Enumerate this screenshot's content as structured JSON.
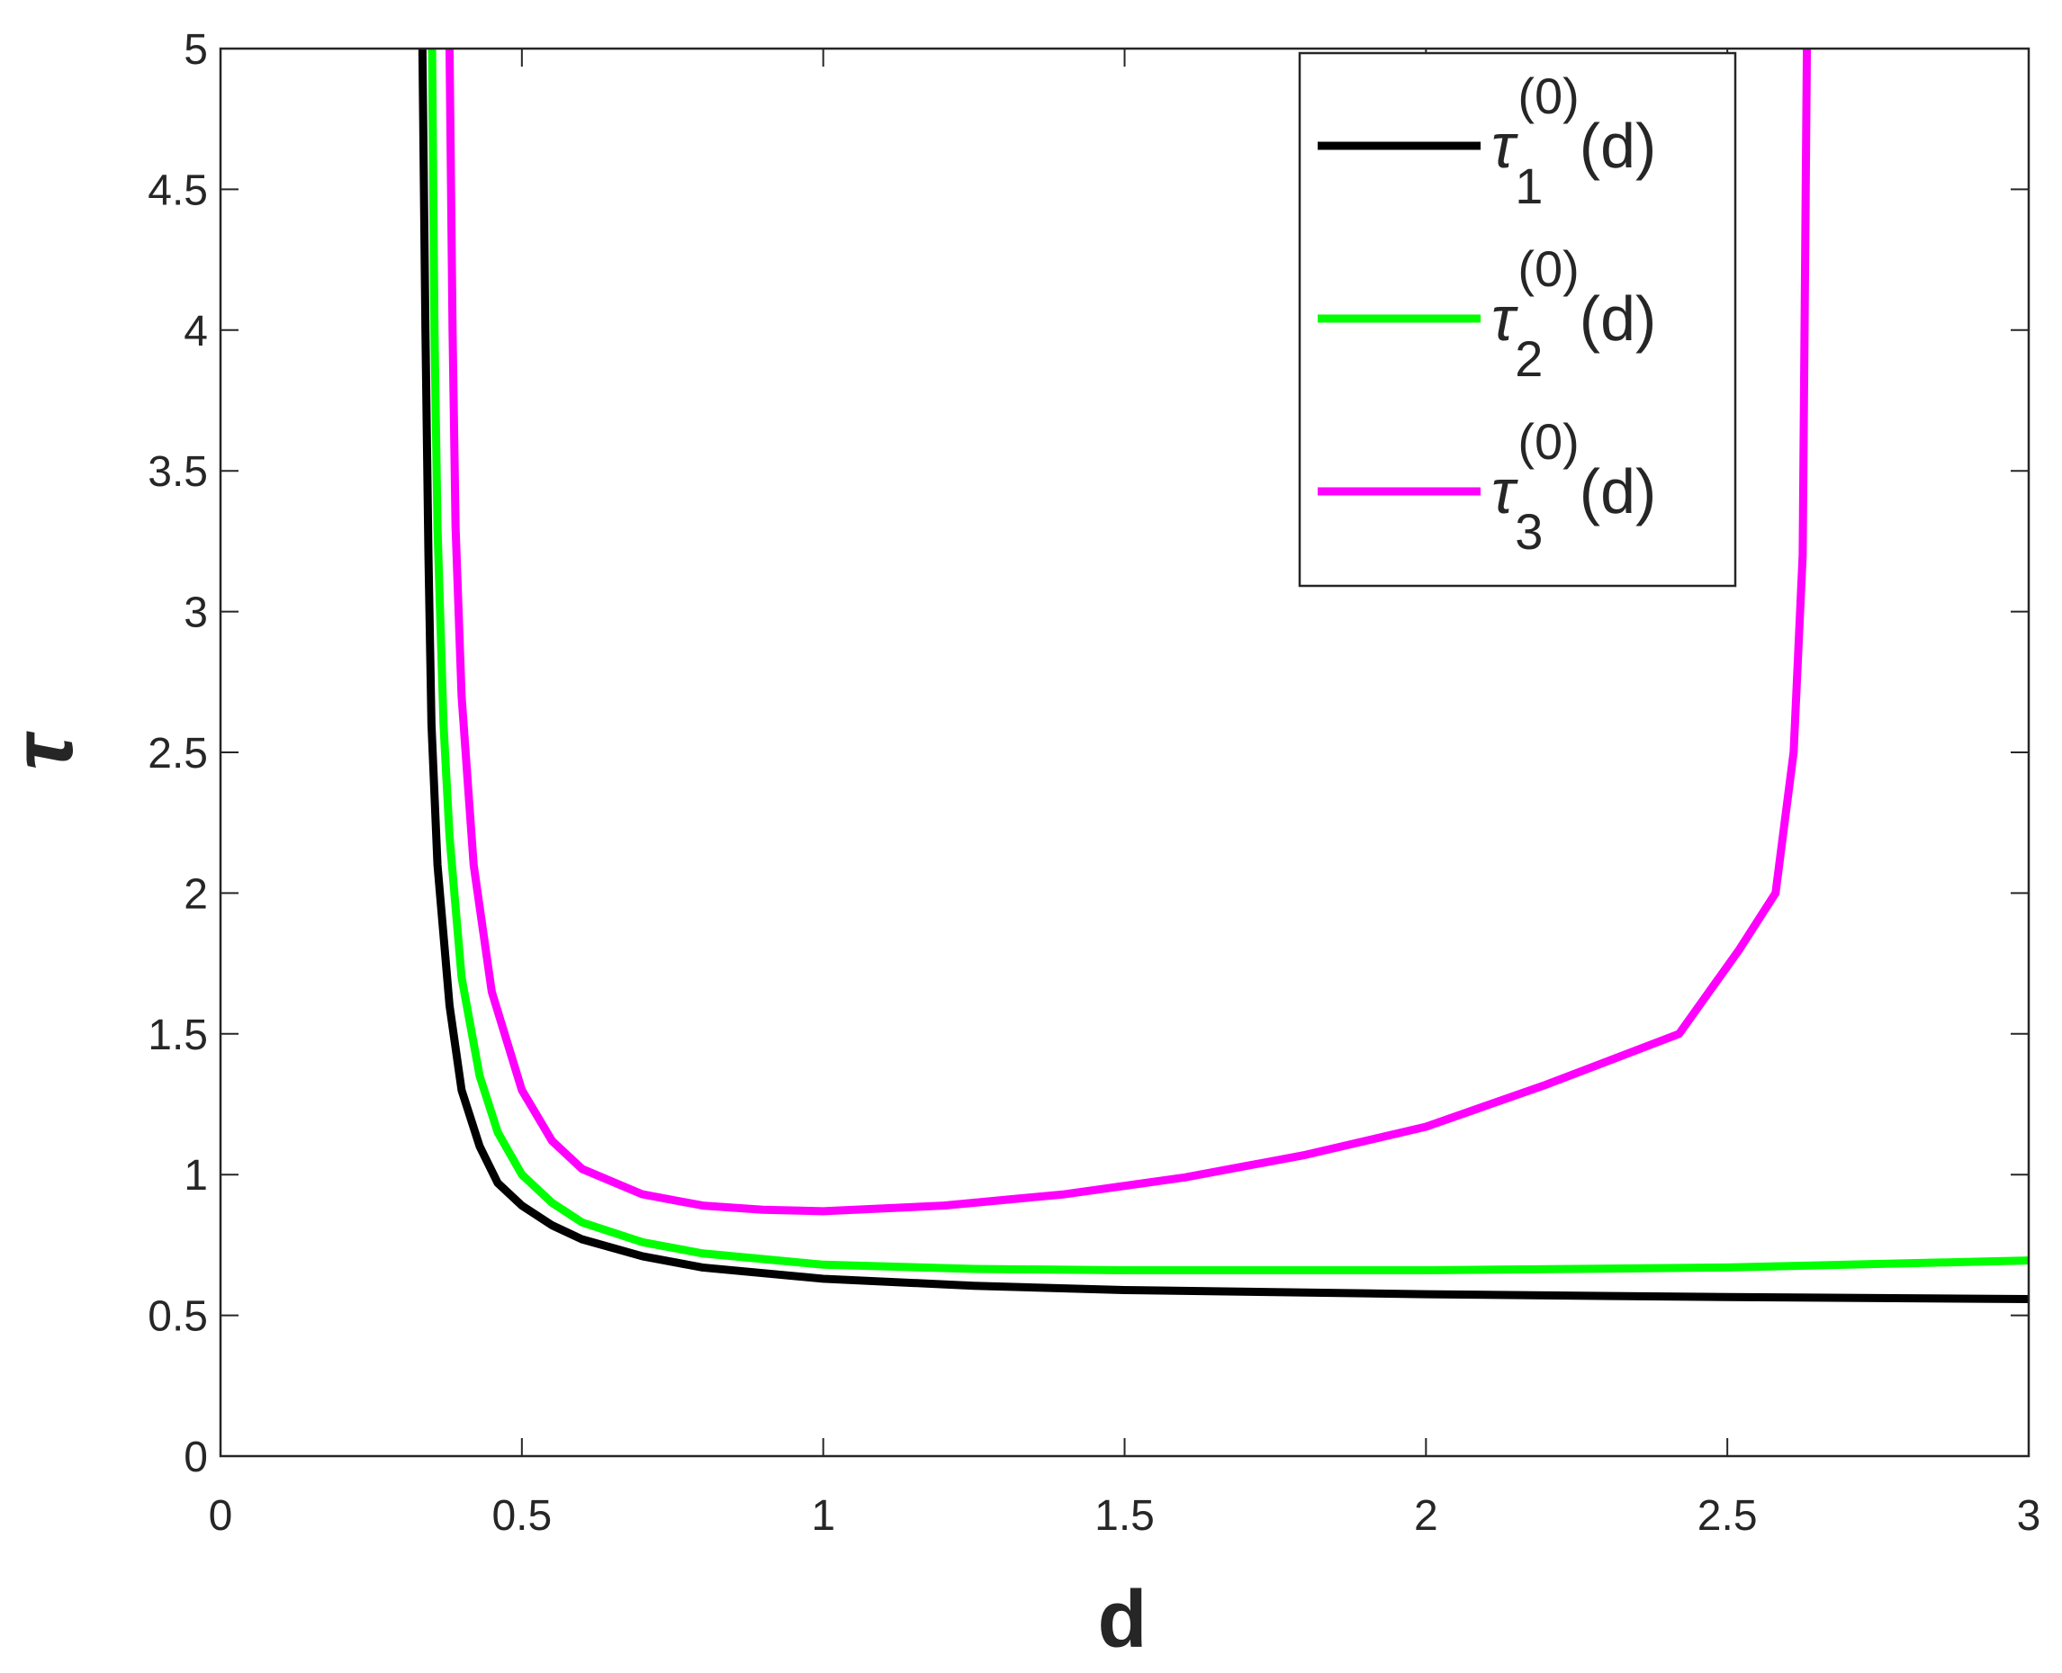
{
  "chart_data": {
    "type": "line",
    "xlabel": "d",
    "ylabel": "τ",
    "xlim": [
      0,
      3
    ],
    "xticks": [
      0,
      0.5,
      1,
      1.5,
      2,
      2.5,
      3
    ],
    "ylim": [
      0,
      5
    ],
    "yticks": [
      0,
      0.5,
      1,
      1.5,
      2,
      2.5,
      3,
      3.5,
      4,
      4.5,
      5
    ],
    "legend": "upper right",
    "grid": false,
    "series": [
      {
        "name": "τ1(0)(d)",
        "color": "#000000",
        "x": [
          0.335,
          0.34,
          0.345,
          0.35,
          0.36,
          0.38,
          0.4,
          0.43,
          0.46,
          0.5,
          0.55,
          0.6,
          0.7,
          0.8,
          1,
          1.25,
          1.5,
          2,
          2.5,
          3
        ],
        "values": [
          5,
          4,
          3.2,
          2.6,
          2.1,
          1.6,
          1.3,
          1.1,
          0.97,
          0.89,
          0.82,
          0.77,
          0.71,
          0.67,
          0.63,
          0.605,
          0.59,
          0.575,
          0.565,
          0.558
        ]
      },
      {
        "name": "τ2(0)(d)",
        "color": "#00ff00",
        "x": [
          0.351,
          0.355,
          0.36,
          0.37,
          0.38,
          0.4,
          0.43,
          0.46,
          0.5,
          0.55,
          0.6,
          0.7,
          0.8,
          1,
          1.25,
          1.5,
          2,
          2.5,
          3
        ],
        "values": [
          5,
          4,
          3.3,
          2.6,
          2.2,
          1.7,
          1.35,
          1.15,
          1.0,
          0.9,
          0.83,
          0.76,
          0.72,
          0.68,
          0.665,
          0.66,
          0.66,
          0.67,
          0.695
        ]
      },
      {
        "name": "τ3(0)(d)",
        "color": "#ff00ff",
        "x": [
          0.38,
          0.385,
          0.39,
          0.4,
          0.42,
          0.45,
          0.5,
          0.55,
          0.6,
          0.7,
          0.8,
          0.9,
          1,
          1.2,
          1.4,
          1.6,
          1.8,
          2,
          2.2,
          2.42,
          2.52,
          2.58,
          2.61,
          2.625,
          2.632
        ],
        "values": [
          5,
          4,
          3.3,
          2.7,
          2.1,
          1.65,
          1.3,
          1.12,
          1.02,
          0.93,
          0.89,
          0.875,
          0.87,
          0.89,
          0.93,
          0.99,
          1.07,
          1.17,
          1.32,
          1.5,
          1.8,
          2.0,
          2.5,
          3.2,
          5
        ]
      }
    ]
  }
}
